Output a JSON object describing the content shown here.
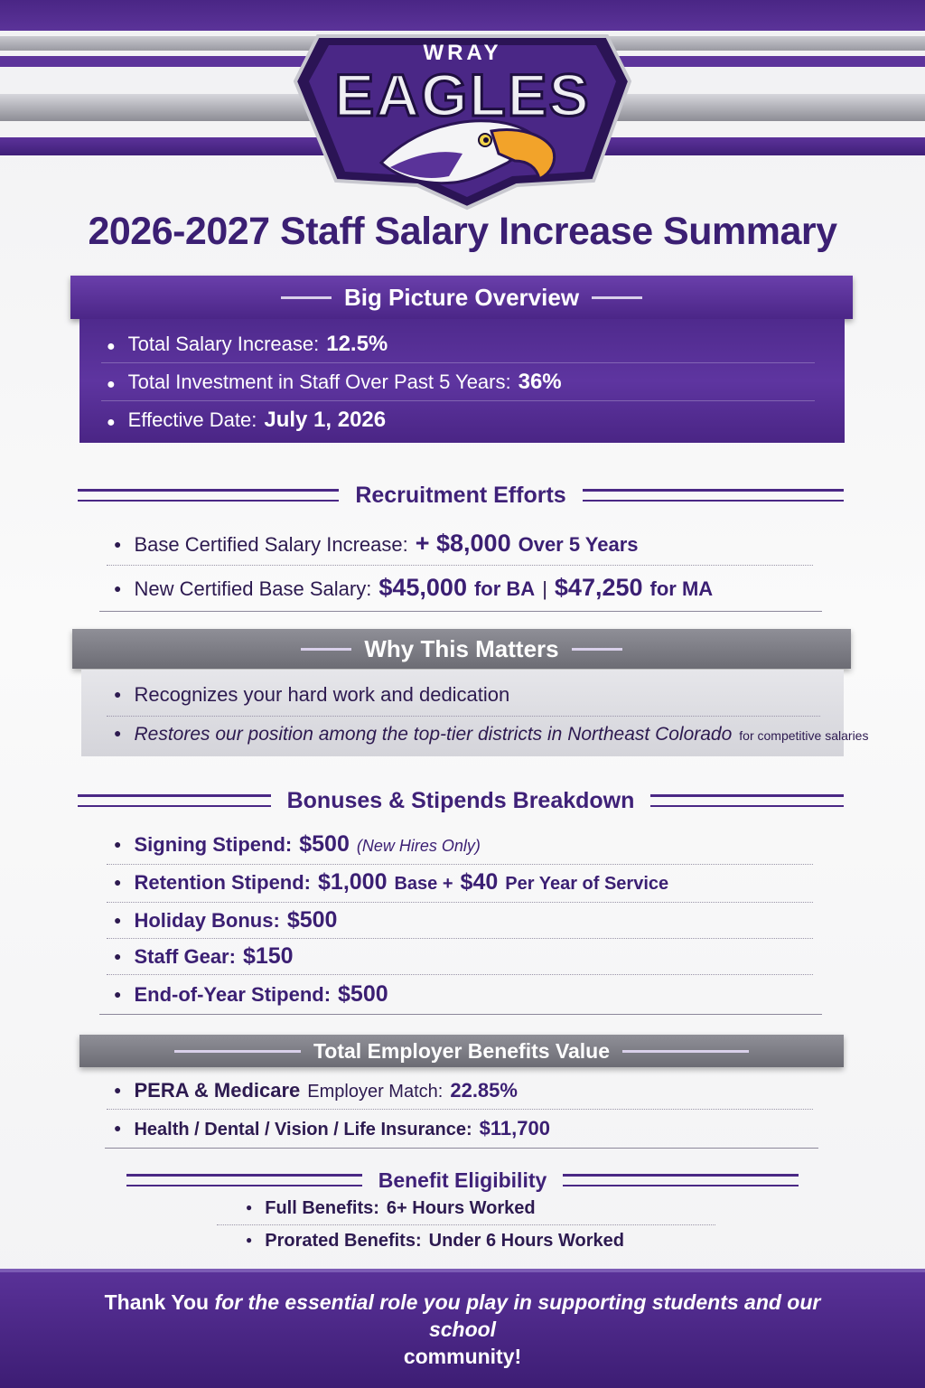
{
  "logo": {
    "top_text": "WRAY",
    "main_text": "EAGLES"
  },
  "title": "2026-2027 Staff Salary Increase Summary",
  "overview": {
    "heading": "Big Picture Overview",
    "items": [
      {
        "label": "Total Salary Increase:",
        "value": "12.5%"
      },
      {
        "label": "Total Investment in Staff Over Past 5 Years:",
        "value": "36%"
      },
      {
        "label": "Effective Date:",
        "value": "July 1, 2026"
      }
    ]
  },
  "recruitment": {
    "heading": "Recruitment Efforts",
    "item1": {
      "label": "Base Certified Salary Increase:",
      "value": "+ $8,000",
      "suffix": "Over 5 Years"
    },
    "item2": {
      "label": "New Certified Base Salary:",
      "ba_value": "$45,000",
      "ba_suffix": "for BA",
      "sep": "|",
      "ma_value": "$47,250",
      "ma_suffix": "for MA"
    }
  },
  "why": {
    "heading": "Why This Matters",
    "item1": "Recognizes your hard work and dedication",
    "item2_main": "Restores our position among the top-tier districts in Northeast Colorado",
    "item2_small": "for competitive salaries"
  },
  "bonuses": {
    "heading": "Bonuses & Stipends Breakdown",
    "signing": {
      "label": "Signing Stipend:",
      "value": "$500",
      "note": "(New Hires Only)"
    },
    "retention": {
      "label": "Retention Stipend:",
      "value": "$1,000",
      "base": "Base +",
      "value2": "$40",
      "suffix": "Per Year of Service"
    },
    "holiday": {
      "label": "Holiday Bonus:",
      "value": "$500"
    },
    "gear": {
      "label": "Staff Gear:",
      "value": "$150"
    },
    "eoy": {
      "label": "End-of-Year Stipend:",
      "value": "$500"
    }
  },
  "benefits": {
    "heading": "Total Employer Benefits Value",
    "pera": {
      "label_bold": "PERA & Medicare",
      "label": "Employer Match:",
      "value": "22.85%"
    },
    "health": {
      "label": "Health / Dental / Vision / Life Insurance:",
      "value": "$11,700"
    }
  },
  "eligibility": {
    "heading": "Benefit Eligibility",
    "full": {
      "label": "Full Benefits:",
      "value": "6+ Hours Worked"
    },
    "prorated": {
      "label": "Prorated Benefits:",
      "value": "Under 6 Hours Worked"
    }
  },
  "footer": {
    "thanks": "Thank You",
    "message": "for the essential role you play in supporting students and our school",
    "last": "community!"
  },
  "colors": {
    "purple": "#4f2a8d",
    "dark_purple": "#3b1f73",
    "grey": "#7c7c84",
    "eagle_beak": "#f2a32a"
  },
  "icons": [
    "eagle-head-icon",
    "bullet-icon"
  ]
}
